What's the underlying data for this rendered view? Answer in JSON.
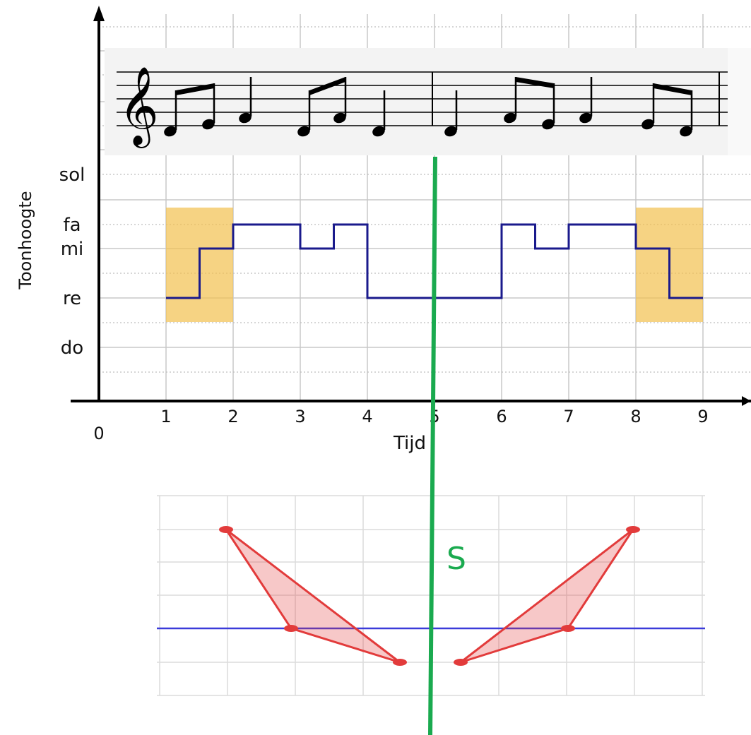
{
  "pitch_chart": {
    "ylabel": "Toonhoogte",
    "xlabel": "Tijd",
    "x_origin_label": "0",
    "x_ticks": [
      "1",
      "2",
      "3",
      "4",
      "5",
      "6",
      "7",
      "8",
      "9"
    ],
    "y_ticks": [
      "do",
      "re",
      "mi",
      "fa",
      "sol"
    ],
    "line_color": "#1a1a8c",
    "highlight_color": "#f2c14e"
  },
  "chart_data": {
    "type": "line",
    "xlabel": "Tijd",
    "ylabel": "Toonhoogte",
    "step_line": [
      {
        "t0": 1,
        "t1": 1.5,
        "pitch": "re"
      },
      {
        "t0": 1.5,
        "t1": 2,
        "pitch": "mi"
      },
      {
        "t0": 2,
        "t1": 3,
        "pitch": "fa"
      },
      {
        "t0": 3,
        "t1": 3.5,
        "pitch": "mi"
      },
      {
        "t0": 3.5,
        "t1": 4,
        "pitch": "fa"
      },
      {
        "t0": 4,
        "t1": 6,
        "pitch": "re"
      },
      {
        "t0": 6,
        "t1": 6.5,
        "pitch": "fa"
      },
      {
        "t0": 6.5,
        "t1": 7,
        "pitch": "mi"
      },
      {
        "t0": 7,
        "t1": 8,
        "pitch": "fa"
      },
      {
        "t0": 8,
        "t1": 8.5,
        "pitch": "mi"
      },
      {
        "t0": 8.5,
        "t1": 9,
        "pitch": "re"
      }
    ],
    "highlighted_ranges": [
      [
        1,
        2
      ],
      [
        8,
        9
      ]
    ],
    "xlim": [
      0,
      9
    ],
    "grid": true
  },
  "staff": {
    "clef": "𝄞",
    "notes": [
      "re",
      "mi",
      "fa",
      "re",
      "fa",
      "re",
      "re",
      "fa",
      "mi",
      "fa",
      "mi",
      "re"
    ]
  },
  "symmetry": {
    "axis_label": "S",
    "axis_color": "#1aaa4f",
    "triangle_color": "#e23b3b",
    "baseline_color": "#3b3bd9"
  }
}
